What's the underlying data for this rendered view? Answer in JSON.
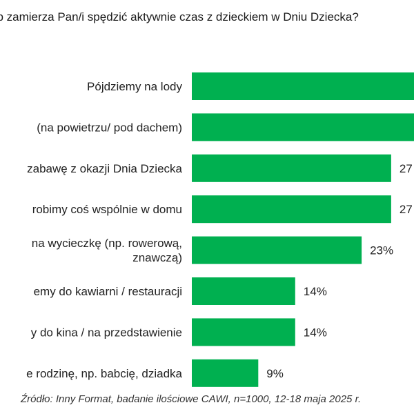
{
  "chart_data": {
    "type": "bar",
    "orientation": "horizontal",
    "title": "ób zamierza Pan/i spędzić aktywnie czas z dzieckiem w Dniu Dziecka?",
    "categories": [
      [
        "Pójdziemy na lody"
      ],
      [
        "(na powietrzu/ pod dachem)"
      ],
      [
        "zabawę z okazji Dnia Dziecka"
      ],
      [
        "robimy coś wspólnie w domu"
      ],
      [
        "na wycieczkę (np. rowerową,",
        "znawczą)"
      ],
      [
        "emy do kawiarni / restauracji"
      ],
      [
        "y do kina / na przedstawienie"
      ],
      [
        "e rodzinę, np. babcię, dziadka"
      ]
    ],
    "values": [
      null,
      null,
      27,
      27,
      23,
      14,
      14,
      9
    ],
    "data_labels": [
      "",
      "",
      "27",
      "27",
      "23%",
      "14%",
      "14%",
      "9%"
    ],
    "bar_color": "#00b050",
    "xlim": [
      0,
      40
    ]
  },
  "source": "Źródło: Inny Format, badanie ilościowe CAWI, n=1000, 12-18 maja 2025 r."
}
